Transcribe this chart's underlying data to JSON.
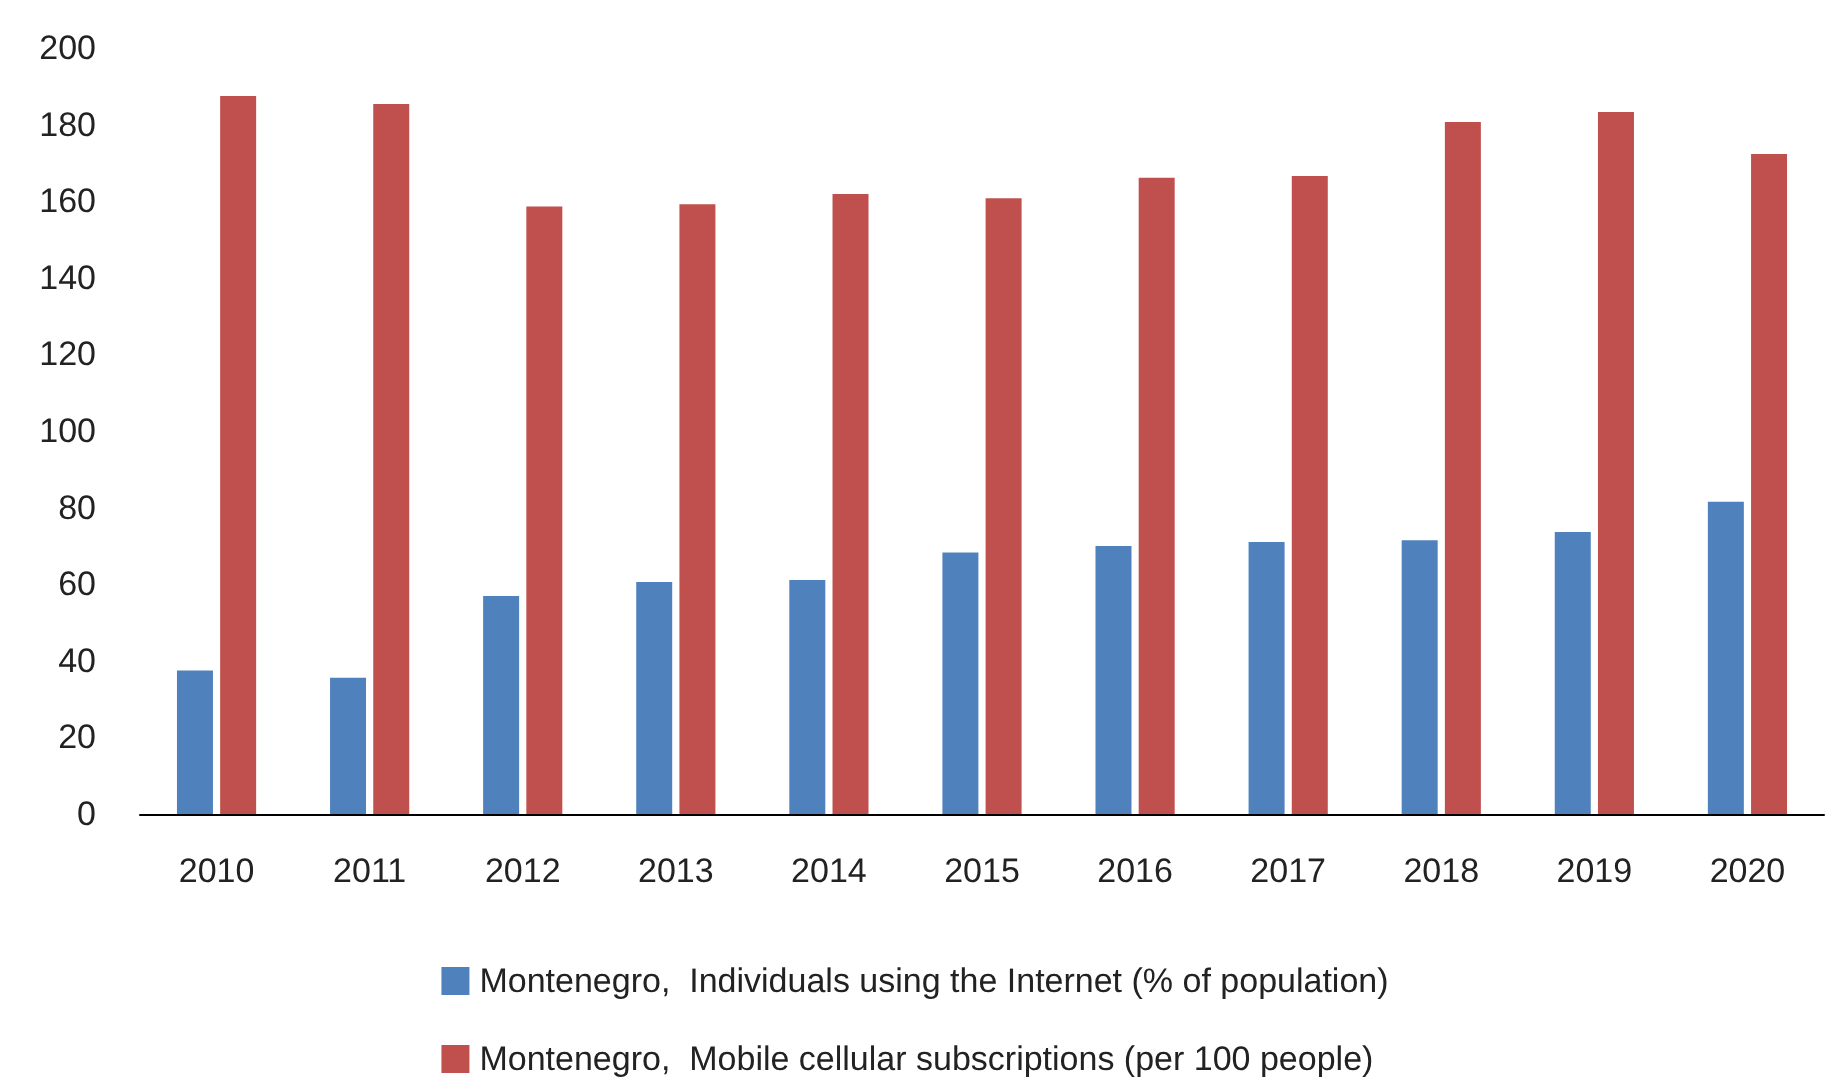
{
  "chart_data": {
    "type": "bar",
    "categories": [
      "2010",
      "2011",
      "2012",
      "2013",
      "2014",
      "2015",
      "2016",
      "2017",
      "2018",
      "2019",
      "2020"
    ],
    "series": [
      {
        "name": "Montenegro,  Individuals using the Internet (% of population)",
        "color": "#4f81bd",
        "values": [
          37.5,
          35.6,
          56.9,
          60.6,
          61.1,
          68.3,
          70.0,
          71.0,
          71.5,
          73.6,
          81.5
        ]
      },
      {
        "name": "Montenegro,  Mobile cellular subscriptions (per 100 people)",
        "color": "#c0504d",
        "values": [
          187.5,
          185.4,
          158.6,
          159.2,
          161.9,
          160.8,
          166.1,
          166.6,
          180.7,
          183.3,
          172.3
        ]
      }
    ],
    "ylim": [
      0,
      200
    ],
    "yticks": [
      0,
      20,
      40,
      60,
      80,
      100,
      120,
      140,
      160,
      180,
      200
    ],
    "grid": false,
    "legend": "bottom"
  }
}
